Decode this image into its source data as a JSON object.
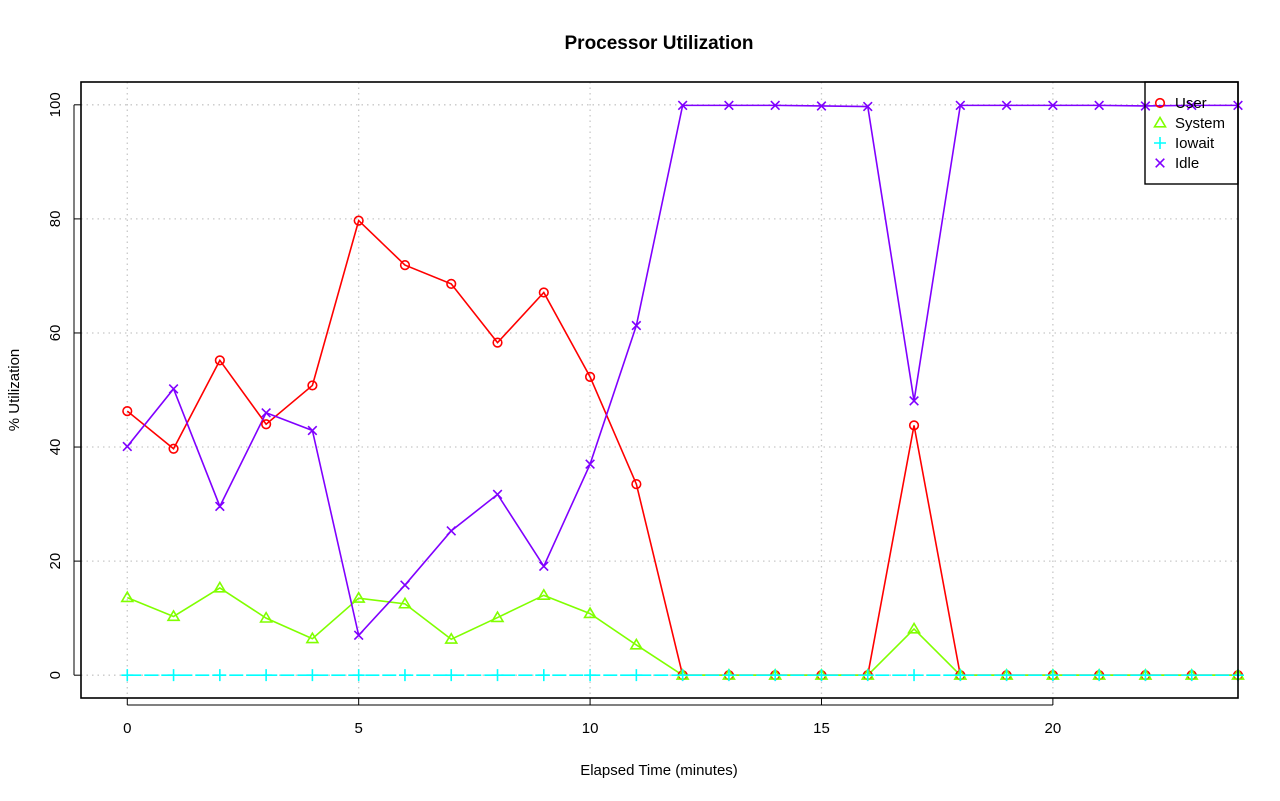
{
  "chart_data": {
    "type": "line",
    "title": "Processor Utilization",
    "xlabel": "Elapsed Time (minutes)",
    "ylabel": "% Utilization",
    "x": [
      0,
      1,
      2,
      3,
      4,
      5,
      6,
      7,
      8,
      9,
      10,
      11,
      12,
      13,
      14,
      15,
      16,
      17,
      18,
      19,
      20,
      21,
      22,
      23,
      24
    ],
    "xlim": [
      -1,
      24
    ],
    "ylim": [
      -4,
      104
    ],
    "x_ticks": [
      0,
      5,
      10,
      15,
      20
    ],
    "y_ticks": [
      0,
      20,
      40,
      60,
      80,
      100
    ],
    "grid": true,
    "legend_position": "top-right",
    "series": [
      {
        "name": "User",
        "color": "#ff0000",
        "marker": "circle",
        "values": [
          46.3,
          39.7,
          55.2,
          44.0,
          50.8,
          79.7,
          71.9,
          68.6,
          58.3,
          67.1,
          52.3,
          33.5,
          0,
          0,
          0,
          0,
          0,
          43.8,
          0,
          0,
          0,
          0,
          0,
          0,
          0
        ]
      },
      {
        "name": "System",
        "color": "#80ff00",
        "marker": "triangle",
        "values": [
          13.6,
          10.3,
          15.3,
          10.0,
          6.4,
          13.5,
          12.5,
          6.3,
          10.1,
          14.0,
          10.8,
          5.3,
          0,
          0,
          0,
          0,
          0,
          8.1,
          0,
          0,
          0,
          0,
          0,
          0,
          0
        ]
      },
      {
        "name": "Iowait",
        "color": "#00ffff",
        "marker": "plus",
        "values": [
          0,
          0,
          0,
          0,
          0,
          0,
          0,
          0,
          0,
          0,
          0,
          0,
          0,
          0,
          0,
          0,
          0,
          0,
          0,
          0,
          0,
          0,
          0,
          0,
          0
        ]
      },
      {
        "name": "Idle",
        "color": "#8000ff",
        "marker": "cross",
        "values": [
          40.1,
          50.2,
          29.6,
          46.0,
          42.9,
          7.0,
          15.8,
          25.3,
          31.7,
          19.1,
          37.0,
          61.3,
          99.9,
          99.9,
          99.9,
          99.8,
          99.7,
          48.1,
          99.9,
          99.9,
          99.9,
          99.9,
          99.8,
          99.9,
          99.9
        ]
      }
    ]
  }
}
